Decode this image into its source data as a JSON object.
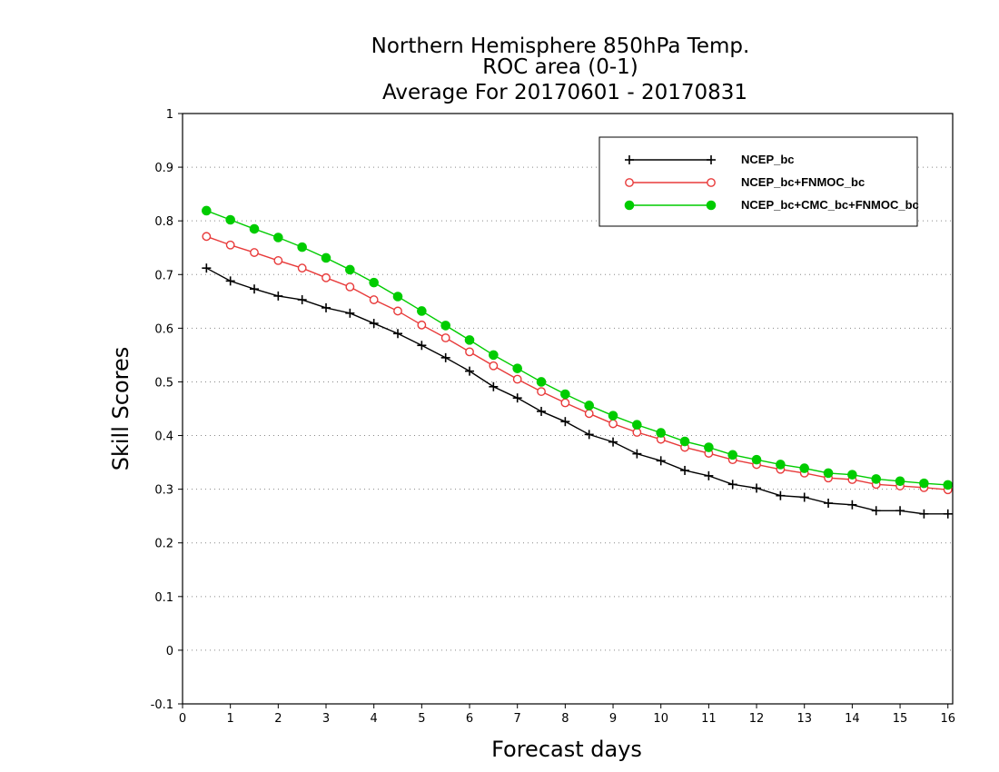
{
  "chart_data": {
    "type": "line",
    "title_lines": [
      "Northern Hemisphere 850hPa Temp.",
      "ROC area (0-1)",
      "Average For 20170601 - 20170831"
    ],
    "xlabel": "Forecast days",
    "ylabel": "Skill Scores",
    "xlim": [
      0,
      16.1
    ],
    "ylim": [
      -0.1,
      1.0
    ],
    "xticks": [
      0,
      1,
      2,
      3,
      4,
      5,
      6,
      7,
      8,
      9,
      10,
      11,
      12,
      13,
      14,
      15,
      16
    ],
    "yticks": [
      -0.1,
      0,
      0.1,
      0.2,
      0.3,
      0.4,
      0.5,
      0.6,
      0.7,
      0.8,
      0.9,
      1
    ],
    "ytick_labels": [
      "-0.1",
      "0",
      "0.1",
      "0.2",
      "0.3",
      "0.4",
      "0.5",
      "0.6",
      "0.7",
      "0.8",
      "0.9",
      "1"
    ],
    "grid": "horizontal-dotted",
    "legend_position": "top-right",
    "x": [
      0.5,
      1,
      1.5,
      2,
      2.5,
      3,
      3.5,
      4,
      4.5,
      5,
      5.5,
      6,
      6.5,
      7,
      7.5,
      8,
      8.5,
      9,
      9.5,
      10,
      10.5,
      11,
      11.5,
      12,
      12.5,
      13,
      13.5,
      14,
      14.5,
      15,
      15.5,
      16
    ],
    "series": [
      {
        "name": "NCEP_bc",
        "color": "#000000",
        "marker": "plus",
        "values": [
          0.712,
          0.688,
          0.673,
          0.66,
          0.653,
          0.638,
          0.628,
          0.609,
          0.59,
          0.568,
          0.545,
          0.52,
          0.491,
          0.47,
          0.445,
          0.426,
          0.402,
          0.388,
          0.366,
          0.353,
          0.335,
          0.325,
          0.309,
          0.302,
          0.288,
          0.285,
          0.274,
          0.271,
          0.26,
          0.26,
          0.254,
          0.254
        ]
      },
      {
        "name": "NCEP_bc+FNMOC_bc",
        "color": "#e83a3a",
        "marker": "open-circle",
        "values": [
          0.771,
          0.755,
          0.741,
          0.726,
          0.712,
          0.694,
          0.677,
          0.653,
          0.632,
          0.606,
          0.582,
          0.556,
          0.53,
          0.505,
          0.482,
          0.461,
          0.441,
          0.422,
          0.406,
          0.393,
          0.378,
          0.367,
          0.355,
          0.346,
          0.337,
          0.33,
          0.321,
          0.318,
          0.309,
          0.306,
          0.303,
          0.299
        ]
      },
      {
        "name": "NCEP_bc+CMC_bc+FNMOC_bc",
        "color": "#00cc00",
        "marker": "filled-circle",
        "values": [
          0.819,
          0.802,
          0.785,
          0.769,
          0.751,
          0.731,
          0.709,
          0.685,
          0.659,
          0.632,
          0.605,
          0.578,
          0.55,
          0.525,
          0.5,
          0.477,
          0.456,
          0.437,
          0.42,
          0.405,
          0.389,
          0.378,
          0.364,
          0.355,
          0.346,
          0.339,
          0.33,
          0.327,
          0.319,
          0.315,
          0.311,
          0.308
        ]
      }
    ]
  }
}
